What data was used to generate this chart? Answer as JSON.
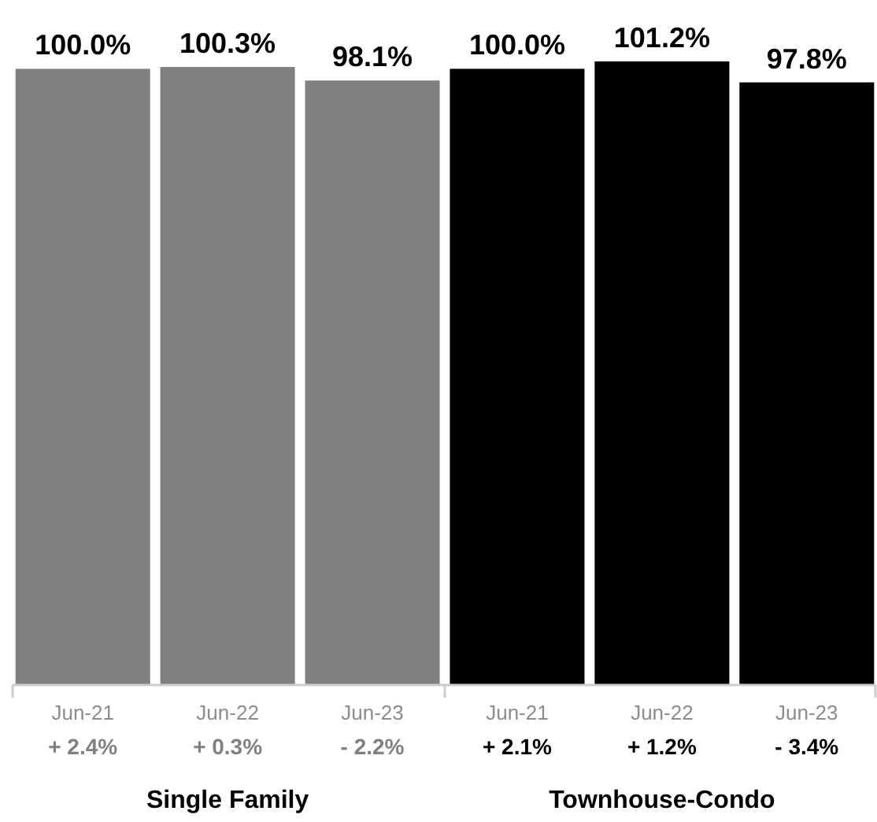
{
  "chart_data": {
    "type": "bar",
    "categories": [
      "Jun-21",
      "Jun-22",
      "Jun-23",
      "Jun-21",
      "Jun-22",
      "Jun-23"
    ],
    "values": [
      100.0,
      100.3,
      98.1,
      100.0,
      101.2,
      97.8
    ],
    "colors": [
      "#808080",
      "#808080",
      "#808080",
      "#000000",
      "#000000",
      "#000000"
    ],
    "value_labels": [
      "100.0%",
      "100.3%",
      "98.1%",
      "100.0%",
      "101.2%",
      "97.8%"
    ],
    "annotations": [
      "+ 2.4%",
      "+ 0.3%",
      "- 2.2%",
      "+ 2.1%",
      "+ 1.2%",
      "- 3.4%",
      "Single Family",
      "Townhouse-Condo"
    ]
  }
}
